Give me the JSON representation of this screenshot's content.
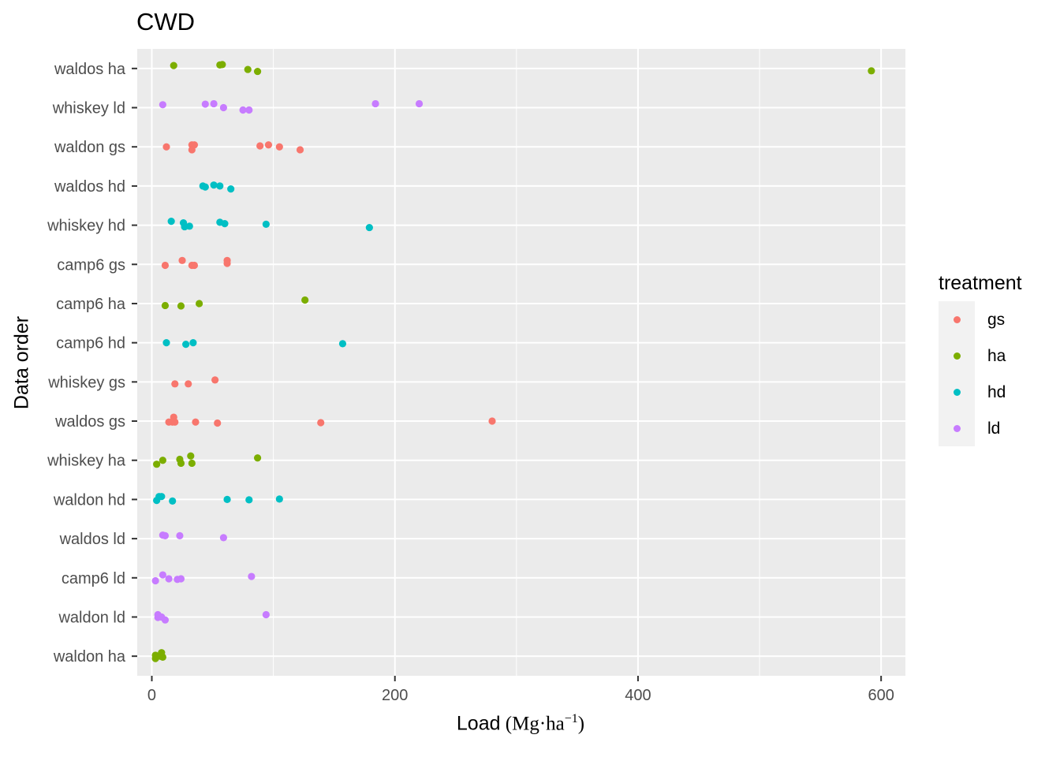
{
  "chart_data": {
    "type": "scatter",
    "title": "CWD",
    "xlabel": "Load",
    "xlabel_unit": {
      "open": "(",
      "main": "Mg",
      "dot": "·",
      "sub": "ha",
      "exp": "−1",
      "close": ")"
    },
    "ylabel": "Data order",
    "xlim": [
      -12,
      620
    ],
    "xticks": [
      0,
      200,
      400,
      600
    ],
    "grid": true,
    "legend_title": "treatment",
    "legend_position": "right",
    "categories": [
      "waldon ha",
      "waldon ld",
      "camp6 ld",
      "waldos ld",
      "waldon hd",
      "whiskey ha",
      "waldos gs",
      "whiskey gs",
      "camp6 hd",
      "camp6 ha",
      "camp6 gs",
      "whiskey hd",
      "waldos hd",
      "waldon gs",
      "whiskey ld",
      "waldos ha"
    ],
    "series": [
      {
        "name": "gs",
        "color": "#F8766D",
        "points": [
          {
            "y": "waldon gs",
            "x": 12,
            "jitter": 0.0
          },
          {
            "y": "waldon gs",
            "x": 33,
            "jitter": 0.1
          },
          {
            "y": "waldon gs",
            "x": 35,
            "jitter": 0.1
          },
          {
            "y": "waldon gs",
            "x": 33,
            "jitter": -0.15
          },
          {
            "y": "waldon gs",
            "x": 89,
            "jitter": 0.05
          },
          {
            "y": "waldon gs",
            "x": 96,
            "jitter": 0.1
          },
          {
            "y": "waldon gs",
            "x": 105,
            "jitter": 0.0
          },
          {
            "y": "waldon gs",
            "x": 122,
            "jitter": -0.15
          },
          {
            "y": "camp6 gs",
            "x": 11,
            "jitter": -0.05
          },
          {
            "y": "camp6 gs",
            "x": 25,
            "jitter": 0.2
          },
          {
            "y": "camp6 gs",
            "x": 33,
            "jitter": -0.05
          },
          {
            "y": "camp6 gs",
            "x": 35,
            "jitter": -0.05
          },
          {
            "y": "camp6 gs",
            "x": 62,
            "jitter": 0.2
          },
          {
            "y": "camp6 gs",
            "x": 62,
            "jitter": 0.05
          },
          {
            "y": "whiskey gs",
            "x": 19,
            "jitter": -0.1
          },
          {
            "y": "whiskey gs",
            "x": 30,
            "jitter": -0.1
          },
          {
            "y": "whiskey gs",
            "x": 52,
            "jitter": 0.1
          },
          {
            "y": "waldos gs",
            "x": 18,
            "jitter": 0.2
          },
          {
            "y": "waldos gs",
            "x": 17,
            "jitter": -0.05
          },
          {
            "y": "waldos gs",
            "x": 14,
            "jitter": -0.05
          },
          {
            "y": "waldos gs",
            "x": 19,
            "jitter": -0.05
          },
          {
            "y": "waldos gs",
            "x": 36,
            "jitter": -0.05
          },
          {
            "y": "waldos gs",
            "x": 54,
            "jitter": -0.1
          },
          {
            "y": "waldos gs",
            "x": 139,
            "jitter": -0.08
          },
          {
            "y": "waldos gs",
            "x": 280,
            "jitter": 0.0
          }
        ]
      },
      {
        "name": "ha",
        "color": "#7CAE00",
        "points": [
          {
            "y": "waldos ha",
            "x": 18,
            "jitter": 0.15
          },
          {
            "y": "waldos ha",
            "x": 56,
            "jitter": 0.18
          },
          {
            "y": "waldos ha",
            "x": 58,
            "jitter": 0.2
          },
          {
            "y": "waldos ha",
            "x": 79,
            "jitter": -0.05
          },
          {
            "y": "waldos ha",
            "x": 87,
            "jitter": -0.15
          },
          {
            "y": "waldos ha",
            "x": 592,
            "jitter": -0.12
          },
          {
            "y": "camp6 ha",
            "x": 11,
            "jitter": -0.1
          },
          {
            "y": "camp6 ha",
            "x": 24,
            "jitter": -0.12
          },
          {
            "y": "camp6 ha",
            "x": 39,
            "jitter": 0.0
          },
          {
            "y": "camp6 ha",
            "x": 126,
            "jitter": 0.18
          },
          {
            "y": "whiskey ha",
            "x": 4,
            "jitter": -0.2
          },
          {
            "y": "whiskey ha",
            "x": 9,
            "jitter": 0.0
          },
          {
            "y": "whiskey ha",
            "x": 23,
            "jitter": 0.05
          },
          {
            "y": "whiskey ha",
            "x": 24,
            "jitter": -0.15
          },
          {
            "y": "whiskey ha",
            "x": 32,
            "jitter": 0.22
          },
          {
            "y": "whiskey ha",
            "x": 33,
            "jitter": -0.15
          },
          {
            "y": "whiskey ha",
            "x": 87,
            "jitter": 0.12
          },
          {
            "y": "waldon ha",
            "x": 3,
            "jitter": 0.05
          },
          {
            "y": "waldon ha",
            "x": 3,
            "jitter": -0.12
          },
          {
            "y": "waldon ha",
            "x": 7,
            "jitter": 0.0
          },
          {
            "y": "waldon ha",
            "x": 8,
            "jitter": 0.18
          },
          {
            "y": "waldon ha",
            "x": 9,
            "jitter": -0.05
          }
        ]
      },
      {
        "name": "hd",
        "color": "#00BFC4",
        "points": [
          {
            "y": "waldos hd",
            "x": 42,
            "jitter": 0.0
          },
          {
            "y": "waldos hd",
            "x": 44,
            "jitter": -0.05
          },
          {
            "y": "waldos hd",
            "x": 51,
            "jitter": 0.05
          },
          {
            "y": "waldos hd",
            "x": 56,
            "jitter": 0.0
          },
          {
            "y": "waldos hd",
            "x": 65,
            "jitter": -0.15
          },
          {
            "y": "whiskey hd",
            "x": 16,
            "jitter": 0.2
          },
          {
            "y": "whiskey hd",
            "x": 26,
            "jitter": 0.12
          },
          {
            "y": "whiskey hd",
            "x": 27,
            "jitter": -0.08
          },
          {
            "y": "whiskey hd",
            "x": 31,
            "jitter": -0.05
          },
          {
            "y": "whiskey hd",
            "x": 56,
            "jitter": 0.15
          },
          {
            "y": "whiskey hd",
            "x": 60,
            "jitter": 0.08
          },
          {
            "y": "whiskey hd",
            "x": 94,
            "jitter": 0.05
          },
          {
            "y": "whiskey hd",
            "x": 179,
            "jitter": -0.12
          },
          {
            "y": "camp6 hd",
            "x": 12,
            "jitter": 0.0
          },
          {
            "y": "camp6 hd",
            "x": 28,
            "jitter": -0.08
          },
          {
            "y": "camp6 hd",
            "x": 34,
            "jitter": 0.0
          },
          {
            "y": "camp6 hd",
            "x": 157,
            "jitter": -0.05
          },
          {
            "y": "waldon hd",
            "x": 4,
            "jitter": -0.05
          },
          {
            "y": "waldon hd",
            "x": 6,
            "jitter": 0.15
          },
          {
            "y": "waldon hd",
            "x": 8,
            "jitter": 0.15
          },
          {
            "y": "waldon hd",
            "x": 17,
            "jitter": -0.08
          },
          {
            "y": "waldon hd",
            "x": 62,
            "jitter": 0.0
          },
          {
            "y": "waldon hd",
            "x": 80,
            "jitter": -0.02
          },
          {
            "y": "waldon hd",
            "x": 105,
            "jitter": 0.02
          }
        ]
      },
      {
        "name": "ld",
        "color": "#C77CFF",
        "points": [
          {
            "y": "whiskey ld",
            "x": 9,
            "jitter": 0.15
          },
          {
            "y": "whiskey ld",
            "x": 44,
            "jitter": 0.18
          },
          {
            "y": "whiskey ld",
            "x": 51,
            "jitter": 0.2
          },
          {
            "y": "whiskey ld",
            "x": 59,
            "jitter": 0.0
          },
          {
            "y": "whiskey ld",
            "x": 75,
            "jitter": -0.12
          },
          {
            "y": "whiskey ld",
            "x": 80,
            "jitter": -0.12
          },
          {
            "y": "whiskey ld",
            "x": 184,
            "jitter": 0.2
          },
          {
            "y": "whiskey ld",
            "x": 220,
            "jitter": 0.2
          },
          {
            "y": "waldos ld",
            "x": 9,
            "jitter": 0.18
          },
          {
            "y": "waldos ld",
            "x": 11,
            "jitter": 0.15
          },
          {
            "y": "waldos ld",
            "x": 23,
            "jitter": 0.15
          },
          {
            "y": "waldos ld",
            "x": 59,
            "jitter": 0.05
          },
          {
            "y": "camp6 ld",
            "x": 3,
            "jitter": -0.15
          },
          {
            "y": "camp6 ld",
            "x": 9,
            "jitter": 0.15
          },
          {
            "y": "camp6 ld",
            "x": 14,
            "jitter": -0.05
          },
          {
            "y": "camp6 ld",
            "x": 21,
            "jitter": -0.08
          },
          {
            "y": "camp6 ld",
            "x": 24,
            "jitter": -0.05
          },
          {
            "y": "camp6 ld",
            "x": 82,
            "jitter": 0.07
          },
          {
            "y": "waldon ld",
            "x": 5,
            "jitter": 0.12
          },
          {
            "y": "waldon ld",
            "x": 5,
            "jitter": -0.02
          },
          {
            "y": "waldon ld",
            "x": 8,
            "jitter": 0.0
          },
          {
            "y": "waldon ld",
            "x": 11,
            "jitter": -0.15
          },
          {
            "y": "waldon ld",
            "x": 94,
            "jitter": 0.12
          }
        ]
      }
    ]
  }
}
